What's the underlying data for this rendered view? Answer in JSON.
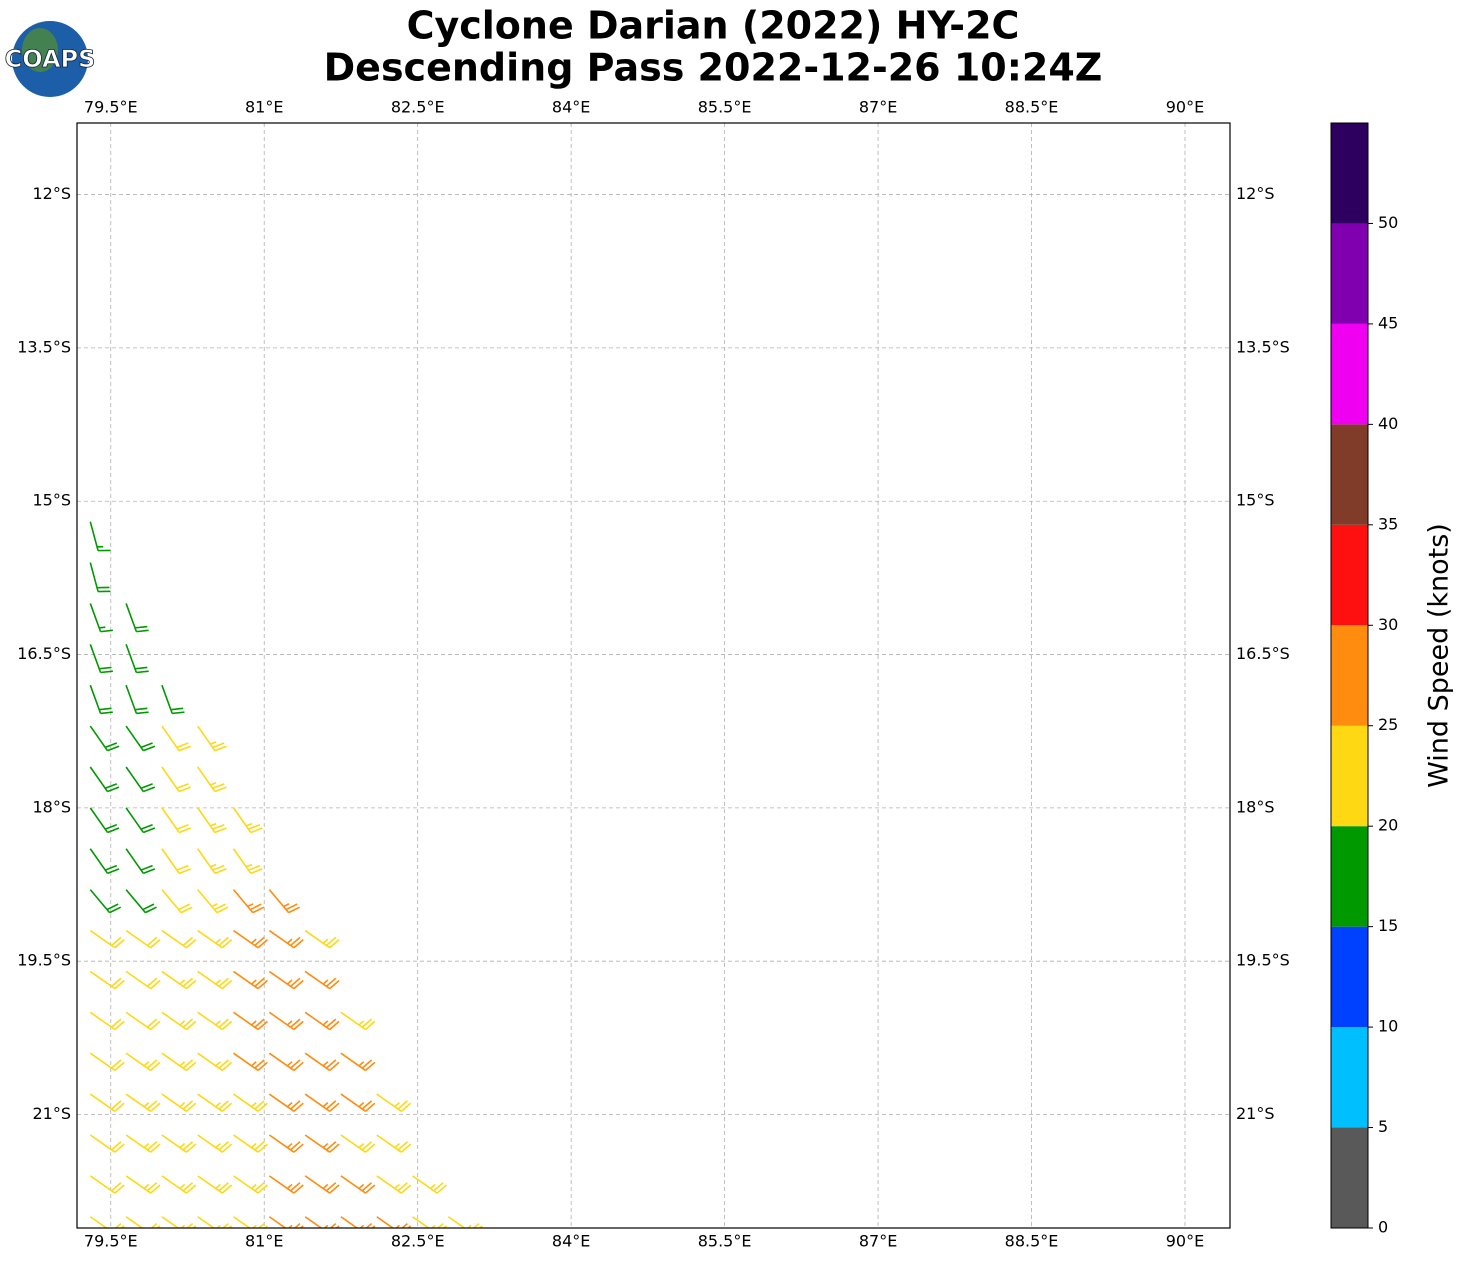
{
  "chart_data": {
    "type": "barbs",
    "title": "Cyclone Darian (2022) HY-2C",
    "subtitle": "Descending Pass 2022-12-26 10:24Z",
    "logo_text": "COAPS",
    "xlim": [
      79.17,
      90.44
    ],
    "ylim": [
      -22.11,
      -11.3
    ],
    "xticks": [
      {
        "value": 79.5,
        "label": "79.5°E"
      },
      {
        "value": 81,
        "label": "81°E"
      },
      {
        "value": 82.5,
        "label": "82.5°E"
      },
      {
        "value": 84,
        "label": "84°E"
      },
      {
        "value": 85.5,
        "label": "85.5°E"
      },
      {
        "value": 87,
        "label": "87°E"
      },
      {
        "value": 88.5,
        "label": "88.5°E"
      },
      {
        "value": 90,
        "label": "90°E"
      }
    ],
    "yticks": [
      {
        "value": -12,
        "label": "12°S"
      },
      {
        "value": -13.5,
        "label": "13.5°S"
      },
      {
        "value": -15,
        "label": "15°S"
      },
      {
        "value": -16.5,
        "label": "16.5°S"
      },
      {
        "value": -18,
        "label": "18°S"
      },
      {
        "value": -19.5,
        "label": "19.5°S"
      },
      {
        "value": -21,
        "label": "21°S"
      }
    ],
    "grid": true,
    "colorbar": {
      "label": "Wind Speed (knots)",
      "bounds": [
        0,
        5,
        10,
        15,
        20,
        25,
        30,
        35,
        40,
        45,
        50,
        55
      ],
      "colors": [
        "#595959",
        "#00bfff",
        "#0040ff",
        "#009900",
        "#ffd814",
        "#ff8c0f",
        "#ff1010",
        "#803c28",
        "#f000f0",
        "#8000b0",
        "#2d0060"
      ],
      "ticks": [
        0,
        5,
        10,
        15,
        20,
        25,
        30,
        35,
        40,
        45,
        50
      ]
    },
    "barb_rows": [
      {
        "lat": -15.2,
        "direction": 165,
        "lon": [
          79.3
        ],
        "speed": [
          17
        ]
      },
      {
        "lat": -15.6,
        "direction": 165,
        "lon": [
          79.3
        ],
        "speed": [
          18
        ]
      },
      {
        "lat": -16.0,
        "direction": 160,
        "lon": [
          79.3,
          79.65
        ],
        "speed": [
          17,
          18
        ]
      },
      {
        "lat": -16.4,
        "direction": 160,
        "lon": [
          79.3,
          79.65
        ],
        "speed": [
          18,
          18
        ]
      },
      {
        "lat": -16.8,
        "direction": 160,
        "lon": [
          79.3,
          79.65,
          80.0
        ],
        "speed": [
          18,
          18,
          19
        ]
      },
      {
        "lat": -17.2,
        "direction": 145,
        "lon": [
          79.3,
          79.65,
          80.0,
          80.35
        ],
        "speed": [
          18,
          18,
          22,
          23
        ]
      },
      {
        "lat": -17.6,
        "direction": 145,
        "lon": [
          79.3,
          79.65,
          80.0,
          80.35
        ],
        "speed": [
          18,
          18,
          22,
          23
        ]
      },
      {
        "lat": -18.0,
        "direction": 145,
        "lon": [
          79.3,
          79.65,
          80.0,
          80.35,
          80.7
        ],
        "speed": [
          18,
          19,
          22,
          23,
          23
        ]
      },
      {
        "lat": -18.4,
        "direction": 145,
        "lon": [
          79.3,
          79.65,
          80.0,
          80.35,
          80.7
        ],
        "speed": [
          18,
          18,
          22,
          23,
          24
        ]
      },
      {
        "lat": -18.8,
        "direction": 140,
        "lon": [
          79.3,
          79.65,
          80.0,
          80.35,
          80.7,
          81.05
        ],
        "speed": [
          18,
          19,
          22,
          23,
          26,
          26
        ]
      },
      {
        "lat": -19.2,
        "direction": 125,
        "lon": [
          79.3,
          79.65,
          80.0,
          80.35,
          80.7,
          81.05,
          81.4
        ],
        "speed": [
          22,
          22,
          22,
          23,
          26,
          27,
          24
        ]
      },
      {
        "lat": -19.6,
        "direction": 125,
        "lon": [
          79.3,
          79.65,
          80.0,
          80.35,
          80.7,
          81.05,
          81.4
        ],
        "speed": [
          22,
          22,
          23,
          23,
          26,
          27,
          26
        ]
      },
      {
        "lat": -20.0,
        "direction": 125,
        "lon": [
          79.3,
          79.65,
          80.0,
          80.35,
          80.7,
          81.05,
          81.4,
          81.75
        ],
        "speed": [
          22,
          22,
          23,
          23,
          26,
          27,
          27,
          24
        ]
      },
      {
        "lat": -20.4,
        "direction": 125,
        "lon": [
          79.3,
          79.65,
          80.0,
          80.35,
          80.7,
          81.05,
          81.4,
          81.75
        ],
        "speed": [
          22,
          23,
          23,
          23,
          26,
          27,
          27,
          26
        ]
      },
      {
        "lat": -20.8,
        "direction": 125,
        "lon": [
          79.3,
          79.65,
          80.0,
          80.35,
          80.7,
          81.05,
          81.4,
          81.75,
          82.1
        ],
        "speed": [
          22,
          23,
          23,
          23,
          24,
          27,
          27,
          26,
          24
        ]
      },
      {
        "lat": -21.2,
        "direction": 125,
        "lon": [
          79.3,
          79.65,
          80.0,
          80.35,
          80.7,
          81.05,
          81.4,
          81.75,
          82.1
        ],
        "speed": [
          22,
          23,
          23,
          23,
          24,
          27,
          26,
          24,
          23
        ]
      },
      {
        "lat": -21.6,
        "direction": 125,
        "lon": [
          79.3,
          79.65,
          80.0,
          80.35,
          80.7,
          81.05,
          81.4,
          81.75,
          82.1,
          82.45
        ],
        "speed": [
          22,
          23,
          23,
          23,
          24,
          27,
          27,
          26,
          24,
          23
        ]
      },
      {
        "lat": -22.0,
        "direction": 125,
        "lon": [
          79.3,
          79.65,
          80.0,
          80.35,
          80.7,
          81.05,
          81.4,
          81.75,
          82.1,
          82.45,
          82.8
        ],
        "speed": [
          22,
          22,
          23,
          23,
          24,
          27,
          27,
          26,
          26,
          24,
          23
        ]
      }
    ]
  }
}
